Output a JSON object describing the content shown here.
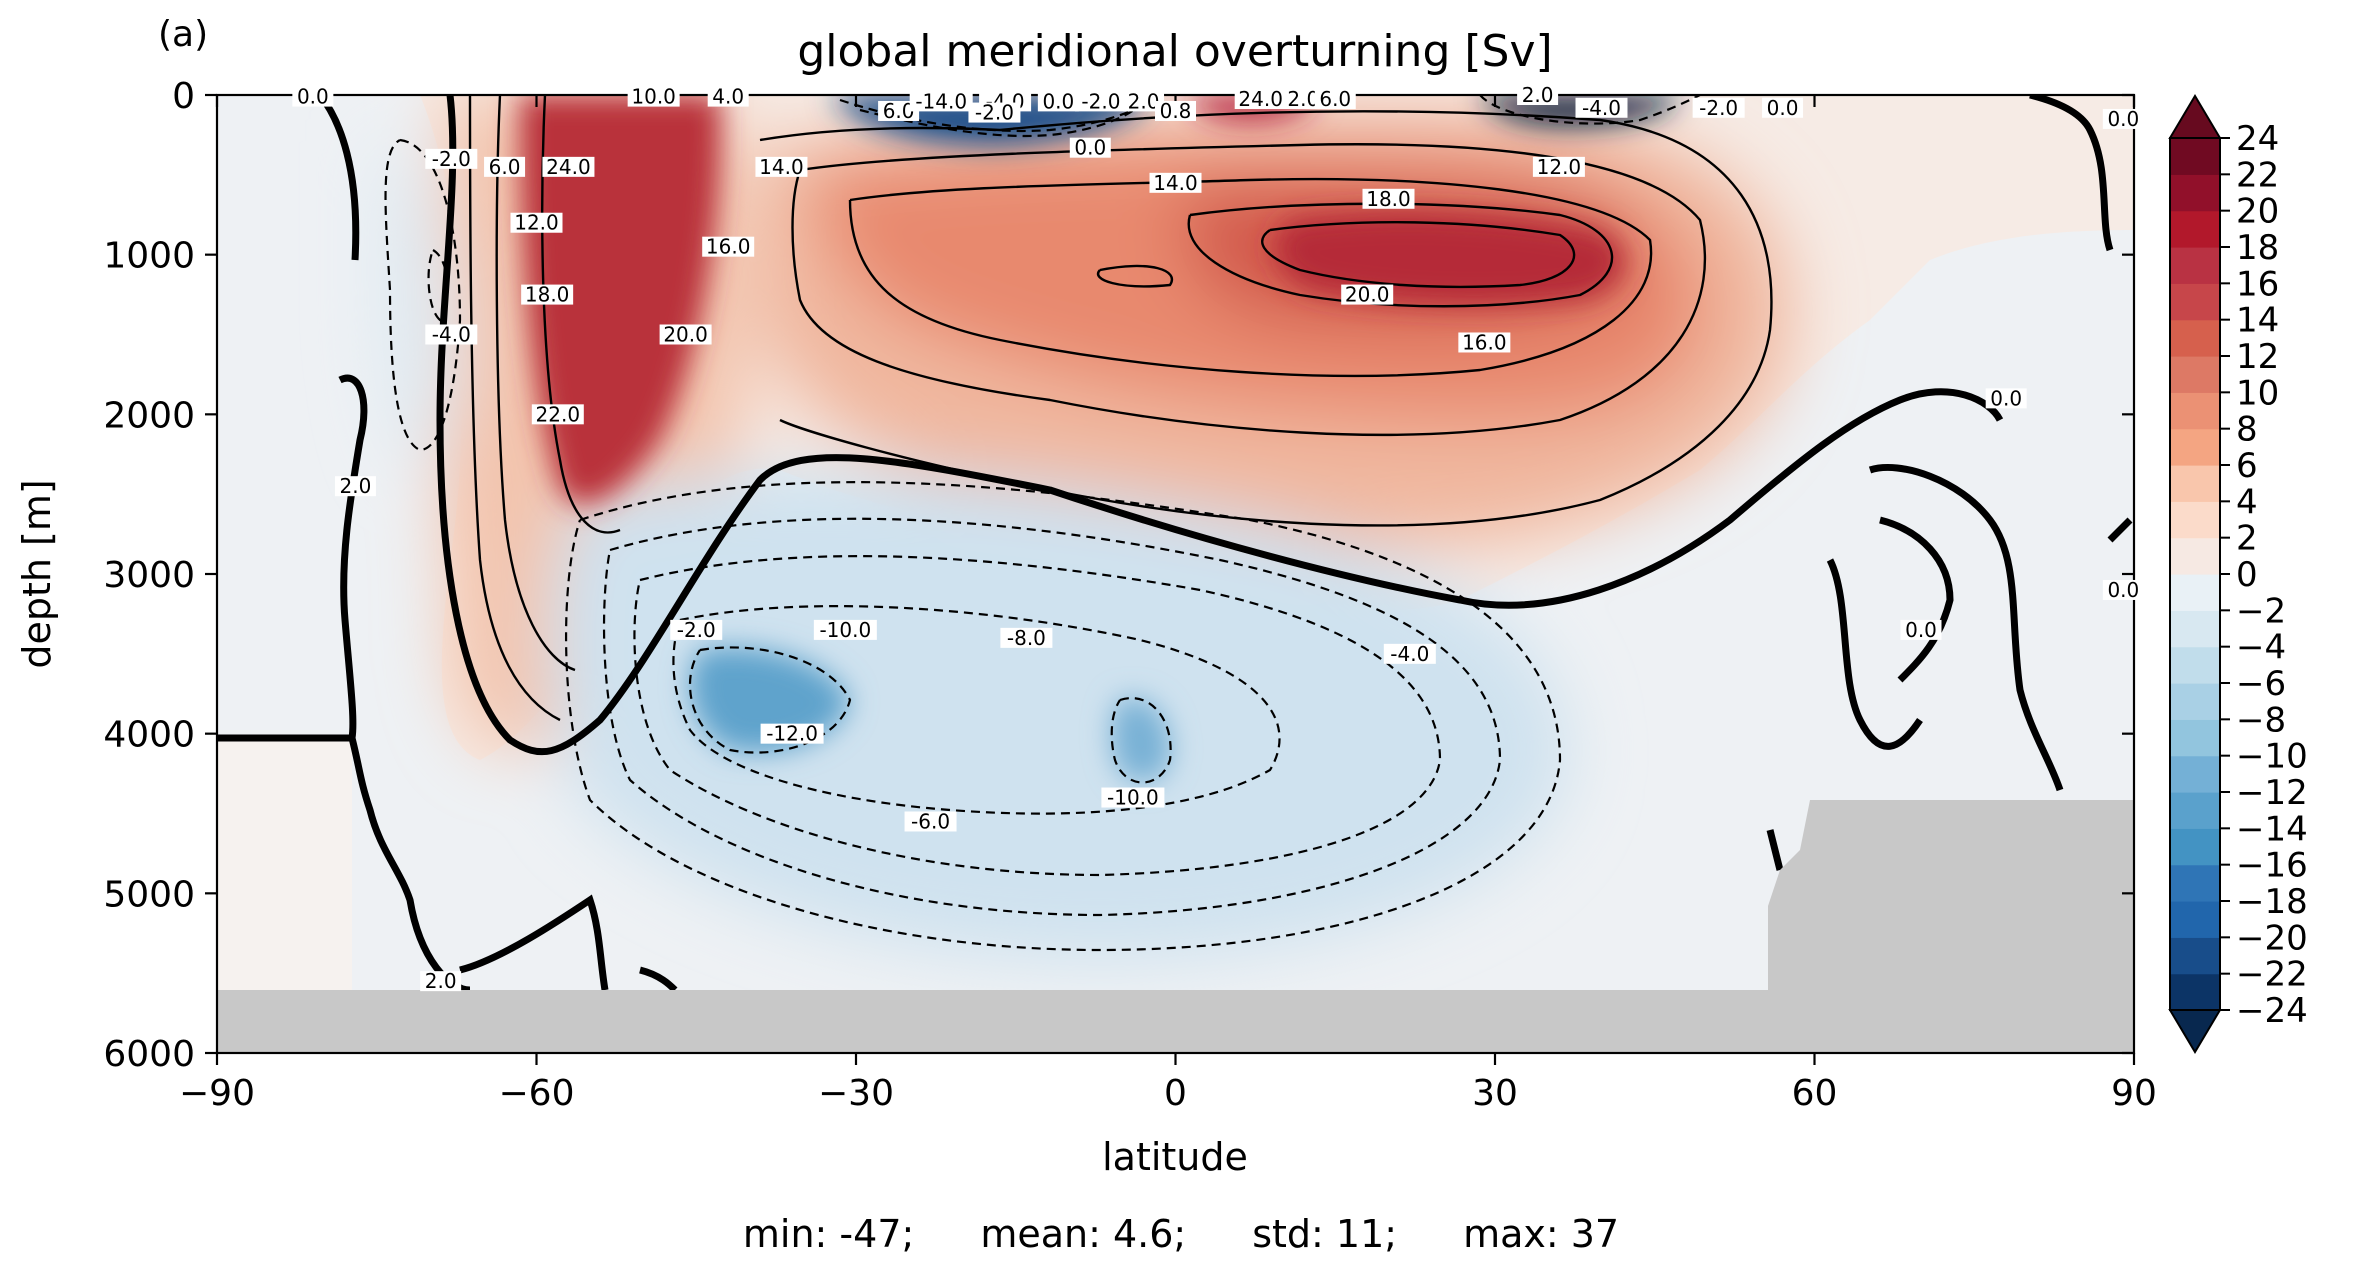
{
  "panel_label": "(a)",
  "chart_data": {
    "type": "contour",
    "title": "global meridional overturning [Sv]",
    "xlabel": "latitude",
    "ylabel": "depth [m]",
    "xlim": [
      -90,
      90
    ],
    "ylim": [
      6000,
      0
    ],
    "xticks": [
      -90,
      -60,
      -30,
      0,
      30,
      60,
      90
    ],
    "xtick_labels": [
      "−90",
      "−60",
      "−30",
      "0",
      "30",
      "60",
      "90"
    ],
    "yticks": [
      0,
      1000,
      2000,
      3000,
      4000,
      5000,
      6000
    ],
    "ytick_labels": [
      "0",
      "1000",
      "2000",
      "3000",
      "4000",
      "5000",
      "6000"
    ],
    "colorbar": {
      "levels": [
        -24,
        -22,
        -20,
        -18,
        -16,
        -14,
        -12,
        -10,
        -8,
        -6,
        -4,
        -2,
        0,
        2,
        4,
        6,
        8,
        10,
        12,
        14,
        16,
        18,
        20,
        22,
        24
      ],
      "tick_labels": [
        "−24",
        "−22",
        "−20",
        "−18",
        "−16",
        "−14",
        "−12",
        "−10",
        "−8",
        "−6",
        "−4",
        "−2",
        "0",
        "2",
        "4",
        "6",
        "8",
        "10",
        "12",
        "14",
        "16",
        "18",
        "20",
        "22",
        "24"
      ],
      "cmap": "RdBu_r",
      "extend": "both"
    },
    "features": [
      {
        "name": "southern-deep-cell",
        "sign": "positive",
        "center": [
          -54,
          1200
        ],
        "peak": 24
      },
      {
        "name": "north-atlantic-cell",
        "sign": "positive",
        "center": [
          30,
          1000
        ],
        "peak": 20
      },
      {
        "name": "abyssal-cell",
        "sign": "negative",
        "center": [
          -35,
          3900
        ],
        "peak": -12
      },
      {
        "name": "equatorial-abyssal-min",
        "sign": "negative",
        "center": [
          -4,
          4100
        ],
        "peak": -10
      },
      {
        "name": "southern-surface-negative",
        "sign": "negative",
        "center": [
          -70,
          1300
        ],
        "peak": -4
      },
      {
        "name": "tropical-surface-negative",
        "sign": "negative",
        "center": [
          -20,
          150
        ],
        "peak": -14
      }
    ],
    "contour_labels": [
      {
        "text": "0.0",
        "x": -81,
        "y": 10
      },
      {
        "text": "10.0",
        "x": -49,
        "y": 10
      },
      {
        "text": "4.0",
        "x": -42,
        "y": 10
      },
      {
        "text": "6.0",
        "x": -26,
        "y": 100
      },
      {
        "text": "-14.0",
        "x": -22,
        "y": 40
      },
      {
        "text": "-4.0",
        "x": -16,
        "y": 40
      },
      {
        "text": "0.0",
        "x": -11,
        "y": 40
      },
      {
        "text": "-2.0",
        "x": -7,
        "y": 40
      },
      {
        "text": "2.0",
        "x": -3,
        "y": 40
      },
      {
        "text": "-2.0",
        "x": -17,
        "y": 110
      },
      {
        "text": "0.0",
        "x": -8,
        "y": 330
      },
      {
        "text": "0.8",
        "x": 0,
        "y": 100
      },
      {
        "text": "24.0",
        "x": 8,
        "y": 25
      },
      {
        "text": "2.0",
        "x": 12,
        "y": 25
      },
      {
        "text": "6.0",
        "x": 15,
        "y": 25
      },
      {
        "text": "2.0",
        "x": 34,
        "y": 0
      },
      {
        "text": "-4.0",
        "x": 40,
        "y": 80
      },
      {
        "text": "-2.0",
        "x": 51,
        "y": 80
      },
      {
        "text": "0.0",
        "x": 57,
        "y": 80
      },
      {
        "text": "0.0",
        "x": 89,
        "y": 150
      },
      {
        "text": "6.0",
        "x": -63,
        "y": 450
      },
      {
        "text": "-2.0",
        "x": -68,
        "y": 400
      },
      {
        "text": "24.0",
        "x": -57,
        "y": 450
      },
      {
        "text": "14.0",
        "x": -37,
        "y": 450
      },
      {
        "text": "14.0",
        "x": 0,
        "y": 550
      },
      {
        "text": "12.0",
        "x": 36,
        "y": 450
      },
      {
        "text": "12.0",
        "x": -60,
        "y": 800
      },
      {
        "text": "16.0",
        "x": -42,
        "y": 950
      },
      {
        "text": "18.0",
        "x": 20,
        "y": 650
      },
      {
        "text": "-4.0",
        "x": -68,
        "y": 1500
      },
      {
        "text": "18.0",
        "x": -59,
        "y": 1250
      },
      {
        "text": "20.0",
        "x": 18,
        "y": 1250
      },
      {
        "text": "20.0",
        "x": -46,
        "y": 1500
      },
      {
        "text": "16.0",
        "x": 29,
        "y": 1550
      },
      {
        "text": "22.0",
        "x": -58,
        "y": 2000
      },
      {
        "text": "0.0",
        "x": 78,
        "y": 1900
      },
      {
        "text": "2.0",
        "x": -77,
        "y": 2450
      },
      {
        "text": "0.0",
        "x": 89,
        "y": 3100
      },
      {
        "text": "-2.0",
        "x": -45,
        "y": 3350
      },
      {
        "text": "-10.0",
        "x": -31,
        "y": 3350
      },
      {
        "text": "-8.0",
        "x": -14,
        "y": 3400
      },
      {
        "text": "-4.0",
        "x": 22,
        "y": 3500
      },
      {
        "text": "0.0",
        "x": 70,
        "y": 3350
      },
      {
        "text": "-12.0",
        "x": -36,
        "y": 4000
      },
      {
        "text": "-10.0",
        "x": -4,
        "y": 4400
      },
      {
        "text": "-6.0",
        "x": -23,
        "y": 4550
      },
      {
        "text": "2.0",
        "x": -69,
        "y": 5550
      }
    ],
    "grid": false,
    "missing_color": "#c8c8c8"
  },
  "stats": {
    "min": "min: -47;",
    "mean": "mean: 4.6;",
    "std": "std: 11;",
    "max": "max: 37"
  }
}
